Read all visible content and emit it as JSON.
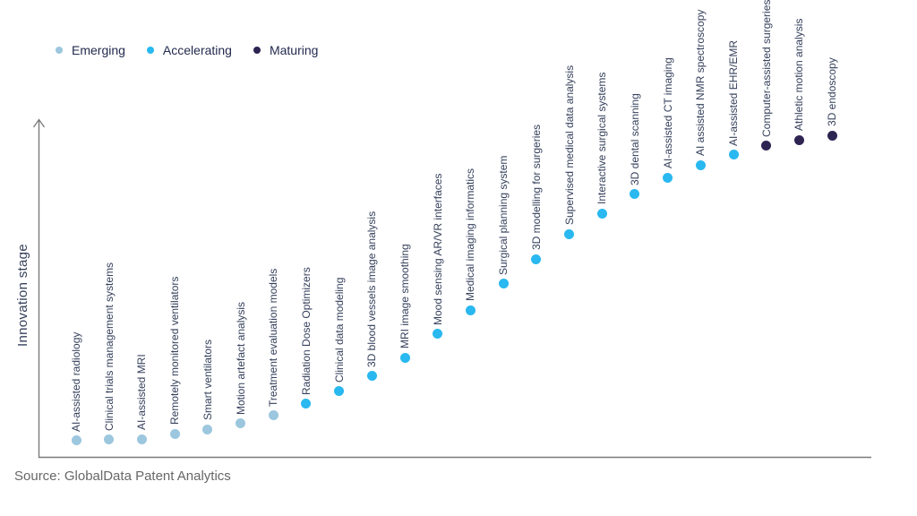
{
  "legend": {
    "items": [
      {
        "label": "Emerging",
        "color": "#9cc7de"
      },
      {
        "label": "Accelerating",
        "color": "#29b8f0"
      },
      {
        "label": "Maturing",
        "color": "#2e2452"
      }
    ]
  },
  "source": "Source: GlobalData Patent Analytics",
  "chart_data": {
    "type": "scatter",
    "title": "",
    "xlabel": "",
    "ylabel": "Innovation stage",
    "grid": false,
    "legend_position": "top-left",
    "y_axis_style": "unlabeled qualitative axis with upward arrow, no ticks",
    "stage_colors": {
      "Emerging": "#9cc7de",
      "Accelerating": "#29b8f0",
      "Maturing": "#2e2452"
    },
    "points": [
      {
        "label": "AI-assisted radiology",
        "stage": "Emerging",
        "level": 5.3
      },
      {
        "label": "Clinical trials management systems",
        "stage": "Emerging",
        "level": 5.6
      },
      {
        "label": "AI-assisted MRI",
        "stage": "Emerging",
        "level": 5.8
      },
      {
        "label": "Remotely monitored ventilators",
        "stage": "Emerging",
        "level": 7.4
      },
      {
        "label": "Smart ventilators",
        "stage": "Emerging",
        "level": 8.8
      },
      {
        "label": "Motion artefact analysis",
        "stage": "Emerging",
        "level": 10.6
      },
      {
        "label": "Treatment evaluation models",
        "stage": "Emerging",
        "level": 13.1
      },
      {
        "label": "Radiation Dose Optimizers",
        "stage": "Accelerating",
        "level": 16.7
      },
      {
        "label": "Clinical data modeling",
        "stage": "Accelerating",
        "level": 20.6
      },
      {
        "label": "3D blood vessels image analysis",
        "stage": "Accelerating",
        "level": 25.3
      },
      {
        "label": "MRI image smoothing",
        "stage": "Accelerating",
        "level": 31.1
      },
      {
        "label": "Mood sensing AR/VR interfaces",
        "stage": "Accelerating",
        "level": 38.4
      },
      {
        "label": "Medical imaging informatics",
        "stage": "Accelerating",
        "level": 45.8
      },
      {
        "label": "Surgical planning system",
        "stage": "Accelerating",
        "level": 54.0
      },
      {
        "label": "3D modelling for surgeries",
        "stage": "Accelerating",
        "level": 61.6
      },
      {
        "label": "Supervised medical data analysis",
        "stage": "Accelerating",
        "level": 69.4
      },
      {
        "label": "Interactive surgical systems",
        "stage": "Accelerating",
        "level": 75.8
      },
      {
        "label": "3D dental scanning",
        "stage": "Accelerating",
        "level": 81.8
      },
      {
        "label": "AI-assisted CT imaging",
        "stage": "Accelerating",
        "level": 86.9
      },
      {
        "label": "AI assisted NMR spectroscopy",
        "stage": "Accelerating",
        "level": 90.8
      },
      {
        "label": "AI-assisted EHR/EMR",
        "stage": "Accelerating",
        "level": 93.9
      },
      {
        "label": "Computer-assisted surgeries",
        "stage": "Maturing",
        "level": 96.7
      },
      {
        "label": "Athletic motion analysis",
        "stage": "Maturing",
        "level": 98.5
      },
      {
        "label": "3D endoscopy",
        "stage": "Maturing",
        "level": 100
      }
    ]
  }
}
